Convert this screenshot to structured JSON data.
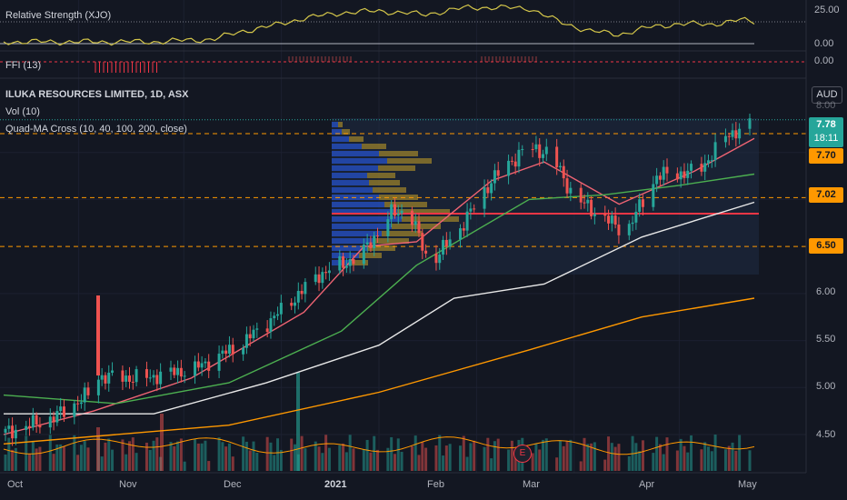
{
  "header": {
    "rs_label": "Relative Strength (XJO)",
    "ffi_label": "FFI (13)",
    "title": "ILUKA RESOURCES LIMITED, 1D, ASX",
    "vol_label": "Vol (10)",
    "ma_label": "Quad-MA Cross (10, 40, 100, 200, close)",
    "currency": "AUD"
  },
  "price_tag": {
    "price": "7.78",
    "countdown": "18:11"
  },
  "level_tags": [
    "7.70",
    "7.02",
    "6.50"
  ],
  "rs_axis": [
    "25.00",
    "0.00"
  ],
  "ffi_axis": [
    "0.00"
  ],
  "price_axis": [
    "8.00",
    "6.00",
    "5.50",
    "5.00",
    "4.50"
  ],
  "time_axis": [
    "Oct",
    "Nov",
    "Dec",
    "2021",
    "Feb",
    "Mar",
    "Apr",
    "May"
  ],
  "earnings_marker": "E",
  "colors": {
    "up": "#26a69a",
    "down": "#ef5350",
    "ma10": "#f06473",
    "ma40": "#4caf50",
    "ma100": "#e8e8e8",
    "ma200": "#ff9800",
    "rs": "#d4c64a",
    "level": "#ff9800",
    "poc": "#f23645",
    "vp_blue": "#2962ff",
    "vp_gold": "#c9a227"
  },
  "chart_data": {
    "type": "candlestick",
    "title": "ILUKA RESOURCES LIMITED, 1D, ASX",
    "ylabel": "AUD",
    "ylim": [
      4.1,
      8.2
    ],
    "x_months": [
      "Oct",
      "Nov",
      "Dec",
      "2021",
      "Feb",
      "Mar",
      "Apr",
      "May"
    ],
    "close_path": [
      [
        "Oct 1",
        4.52
      ],
      [
        "Oct 15",
        4.68
      ],
      [
        "Oct 26",
        4.95
      ],
      [
        "Oct 27",
        5.12
      ],
      [
        "Nov 10",
        5.1
      ],
      [
        "Nov 25",
        5.2
      ],
      [
        "Dec 8",
        5.45
      ],
      [
        "Dec 18",
        5.75
      ],
      [
        "Dec 31",
        6.2
      ],
      [
        "Jan 12",
        6.4
      ],
      [
        "Jan 21",
        6.85
      ],
      [
        "Jan 26",
        6.9
      ],
      [
        "Feb 1",
        6.3
      ],
      [
        "Feb 10",
        6.7
      ],
      [
        "Feb 19",
        7.2
      ],
      [
        "Mar 1",
        7.55
      ],
      [
        "Mar 8",
        7.5
      ],
      [
        "Mar 15",
        7.02
      ],
      [
        "Mar 24",
        6.8
      ],
      [
        "Mar 30",
        6.65
      ],
      [
        "Apr 8",
        7.25
      ],
      [
        "Apr 20",
        7.3
      ],
      [
        "Apr 29",
        7.7
      ],
      [
        "May 5",
        7.78
      ]
    ],
    "moving_averages": [
      {
        "name": "MA10",
        "points": [
          [
            0,
            4.5
          ],
          [
            0.12,
            4.75
          ],
          [
            0.25,
            5.1
          ],
          [
            0.4,
            5.8
          ],
          [
            0.48,
            6.5
          ],
          [
            0.55,
            6.55
          ],
          [
            0.65,
            7.2
          ],
          [
            0.72,
            7.4
          ],
          [
            0.82,
            6.95
          ],
          [
            0.92,
            7.3
          ],
          [
            1.0,
            7.65
          ]
        ]
      },
      {
        "name": "MA40",
        "points": [
          [
            0,
            4.92
          ],
          [
            0.15,
            4.83
          ],
          [
            0.3,
            5.05
          ],
          [
            0.45,
            5.6
          ],
          [
            0.55,
            6.3
          ],
          [
            0.7,
            7.0
          ],
          [
            0.8,
            7.05
          ],
          [
            0.9,
            7.15
          ],
          [
            1.0,
            7.27
          ]
        ]
      },
      {
        "name": "MA100",
        "points": [
          [
            0,
            4.72
          ],
          [
            0.2,
            4.72
          ],
          [
            0.35,
            5.05
          ],
          [
            0.5,
            5.45
          ],
          [
            0.6,
            5.95
          ],
          [
            0.72,
            6.1
          ],
          [
            0.85,
            6.6
          ],
          [
            1.0,
            6.97
          ]
        ]
      },
      {
        "name": "MA200",
        "points": [
          [
            0,
            4.4
          ],
          [
            0.3,
            4.6
          ],
          [
            0.5,
            4.95
          ],
          [
            0.7,
            5.4
          ],
          [
            0.85,
            5.75
          ],
          [
            1.0,
            5.95
          ]
        ]
      }
    ],
    "levels": [
      7.7,
      7.02,
      6.5
    ],
    "point_of_control": 6.85,
    "last_price": 7.78
  }
}
